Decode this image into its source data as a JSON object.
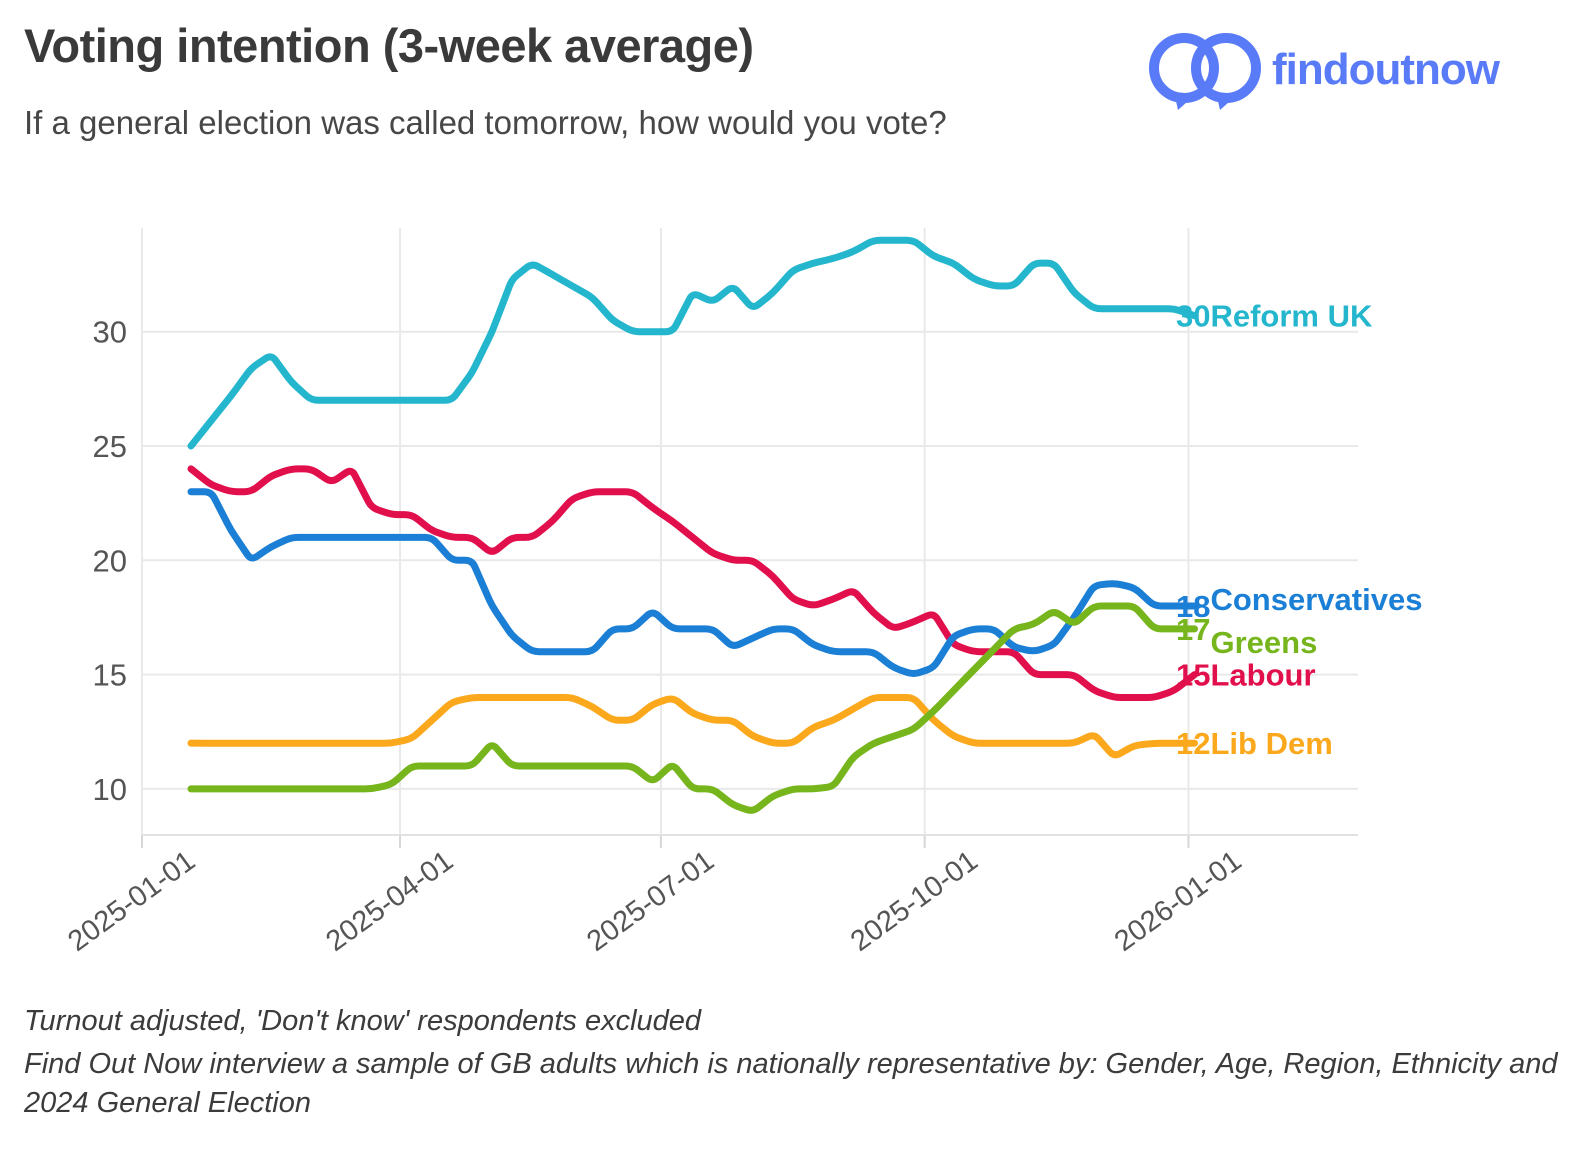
{
  "header": {
    "title": "Voting intention (3-week average)",
    "subtitle": "If a general election was called tomorrow, how would you vote?",
    "logo_text": "findoutnow",
    "logo_color": "#5a7bf8"
  },
  "footer": {
    "line1": "Turnout adjusted, 'Don't know' respondents excluded",
    "line2": "Find Out Now interview a sample of GB adults which is nationally representative by: Gender, Age, Region, Ethnicity and 2024 General Election"
  },
  "chart_data": {
    "type": "line",
    "title": "",
    "xlabel": "",
    "ylabel": "",
    "cadence": "weekly",
    "first_point_date": "2025-01-19",
    "last_point_date": "2026-01-04",
    "x_tick_labels": [
      "2025-01-01",
      "2025-04-01",
      "2025-07-01",
      "2025-10-01",
      "2026-01-01"
    ],
    "x_tick_day_offsets": [
      0,
      90,
      181,
      273,
      365
    ],
    "y_ticks": [
      10,
      15,
      20,
      25,
      30
    ],
    "ylim": [
      8.0,
      34.5
    ],
    "grid": "light horizontal and vertical gridlines",
    "legend_position": "end-of-line labels at right",
    "axis_text_color": "#555555",
    "grid_color": "#e9e9e9",
    "series": [
      {
        "name": "Reform UK",
        "color": "#24b6cd",
        "end_label_value": "30",
        "values": [
          25.0,
          26.1,
          27.2,
          28.4,
          29.0,
          27.8,
          27.0,
          27.0,
          27.0,
          27.0,
          27.0,
          27.0,
          27.0,
          27.0,
          28.2,
          30.0,
          32.3,
          33.0,
          32.5,
          32.0,
          31.5,
          30.5,
          30.0,
          30.0,
          30.0,
          31.7,
          31.3,
          32.0,
          31.0,
          31.7,
          32.7,
          33.0,
          33.2,
          33.5,
          34.0,
          34.0,
          34.0,
          33.3,
          33.0,
          32.3,
          32.0,
          32.0,
          33.0,
          33.0,
          31.7,
          31.0,
          31.0,
          31.0,
          31.0,
          31.0,
          30.7
        ]
      },
      {
        "name": "Conservatives",
        "color": "#1b7fd6",
        "end_label_value": "18",
        "values": [
          23.0,
          23.0,
          21.3,
          20.0,
          20.6,
          21.0,
          21.0,
          21.0,
          21.0,
          21.0,
          21.0,
          21.0,
          21.0,
          20.0,
          20.0,
          18.0,
          16.7,
          16.0,
          16.0,
          16.0,
          16.0,
          17.0,
          17.0,
          17.8,
          17.0,
          17.0,
          17.0,
          16.2,
          16.6,
          17.0,
          17.0,
          16.3,
          16.0,
          16.0,
          16.0,
          15.3,
          15.0,
          15.3,
          16.7,
          17.0,
          17.0,
          16.2,
          16.0,
          16.3,
          17.5,
          18.9,
          19.0,
          18.8,
          18.0,
          18.0,
          18.0
        ]
      },
      {
        "name": "Greens",
        "color": "#77b51d",
        "end_label_value": "17",
        "values": [
          10.0,
          10.0,
          10.0,
          10.0,
          10.0,
          10.0,
          10.0,
          10.0,
          10.0,
          10.0,
          10.2,
          11.0,
          11.0,
          11.0,
          11.0,
          12.0,
          11.0,
          11.0,
          11.0,
          11.0,
          11.0,
          11.0,
          11.0,
          10.3,
          11.1,
          10.0,
          10.0,
          9.3,
          9.0,
          9.7,
          10.0,
          10.0,
          10.1,
          11.4,
          12.0,
          12.3,
          12.6,
          13.4,
          14.3,
          15.2,
          16.1,
          17.0,
          17.2,
          17.8,
          17.2,
          18.0,
          18.0,
          18.0,
          17.0,
          17.0,
          17.0
        ]
      },
      {
        "name": "Labour",
        "color": "#e1104d",
        "end_label_value": "15",
        "values": [
          24.0,
          23.3,
          23.0,
          23.0,
          23.7,
          24.0,
          24.0,
          23.4,
          24.0,
          22.3,
          22.0,
          22.0,
          21.3,
          21.0,
          21.0,
          20.3,
          21.0,
          21.0,
          21.7,
          22.7,
          23.0,
          23.0,
          23.0,
          22.3,
          21.7,
          21.0,
          20.3,
          20.0,
          20.0,
          19.3,
          18.3,
          18.0,
          18.3,
          18.7,
          17.7,
          17.0,
          17.3,
          17.7,
          16.3,
          16.0,
          16.0,
          16.0,
          15.0,
          15.0,
          15.0,
          14.3,
          14.0,
          14.0,
          14.0,
          14.3,
          15.0
        ]
      },
      {
        "name": "Lib Dem",
        "color": "#fba81c",
        "end_label_value": "12",
        "values": [
          12.0,
          12.0,
          12.0,
          12.0,
          12.0,
          12.0,
          12.0,
          12.0,
          12.0,
          12.0,
          12.0,
          12.2,
          13.0,
          13.8,
          14.0,
          14.0,
          14.0,
          14.0,
          14.0,
          14.0,
          13.6,
          13.0,
          13.0,
          13.7,
          14.0,
          13.3,
          13.0,
          13.0,
          12.3,
          12.0,
          12.0,
          12.7,
          13.0,
          13.5,
          14.0,
          14.0,
          14.0,
          13.0,
          12.3,
          12.0,
          12.0,
          12.0,
          12.0,
          12.0,
          12.0,
          12.4,
          11.4,
          11.9,
          12.0,
          12.0,
          12.0
        ]
      }
    ]
  }
}
